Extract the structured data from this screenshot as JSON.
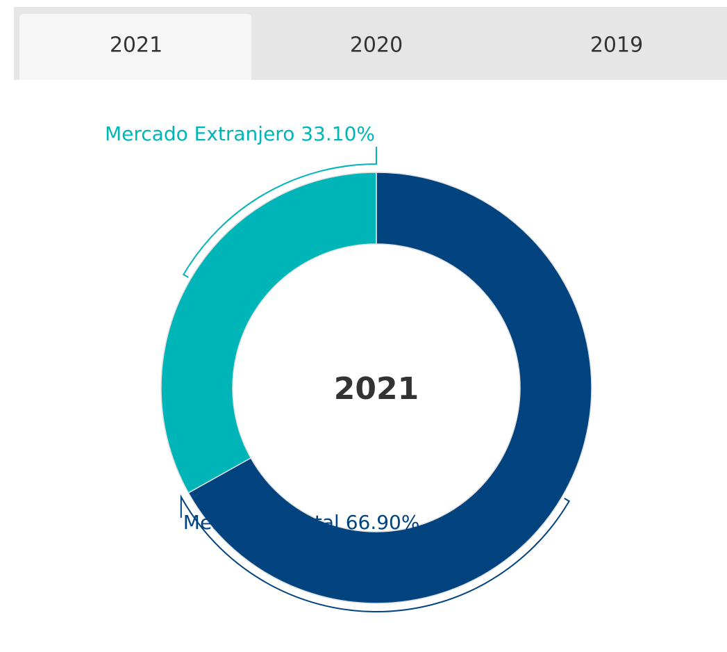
{
  "tabs": [
    "2021",
    "2020",
    "2019"
  ],
  "chart_data": {
    "type": "donut",
    "center_label": "2021",
    "categories": [
      "Mercado Estatal",
      "Mercado Extranjero"
    ],
    "values": [
      66.9,
      33.1
    ],
    "value_labels": [
      "66.90%",
      "33.10%"
    ],
    "colors": [
      "#00437f",
      "#00b5b8"
    ]
  }
}
